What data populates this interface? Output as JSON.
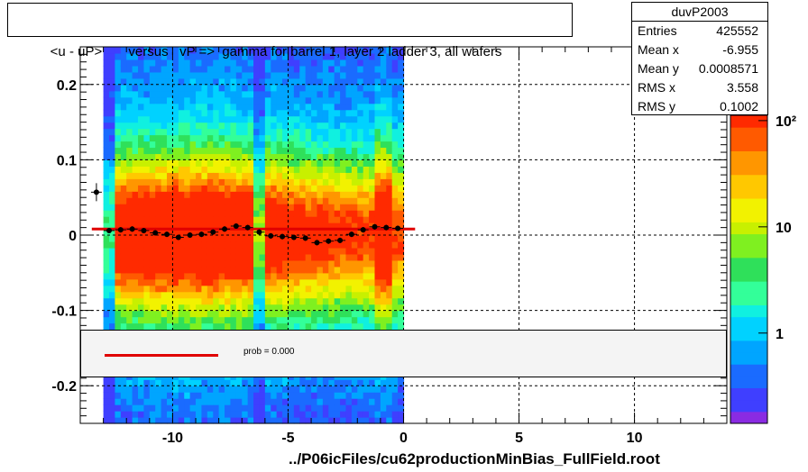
{
  "title": "<u - uP>       versus   vP =>  gamma for barrel 1, layer 2 ladder 3, all wafers",
  "stats": {
    "name": "duvP2003",
    "rows": [
      {
        "label": "Entries",
        "value": "425552"
      },
      {
        "label": "Mean x",
        "value": "-6.955"
      },
      {
        "label": "Mean y",
        "value": "0.0008571"
      },
      {
        "label": "RMS x",
        "value": "3.558"
      },
      {
        "label": "RMS y",
        "value": "0.1002"
      }
    ]
  },
  "legend": {
    "fit_label": "prob = 0.000",
    "fit_color": "#e00000"
  },
  "footer": "../P06icFiles/cu62productionMinBias_FullField.root",
  "chart_data": {
    "type": "heatmap",
    "title": "<u - uP>       versus   vP =>  gamma for barrel 1, layer 2 ladder 3, all wafers",
    "xlim": [
      -14,
      14
    ],
    "ylim": [
      -0.25,
      0.25
    ],
    "x_ticks": [
      "-10",
      "-5",
      "0",
      "5",
      "10"
    ],
    "x_tick_values": [
      -10,
      -5,
      0,
      5,
      10
    ],
    "y_ticks": [
      "0.2",
      "0.1",
      "0",
      "-0.1",
      "-0.2"
    ],
    "y_tick_values": [
      0.2,
      0.1,
      0,
      -0.1,
      -0.2
    ],
    "grid": true,
    "z_scale": "log",
    "z_ticks": [
      "1",
      "10",
      "10²"
    ],
    "z_tick_values": [
      1,
      10,
      100
    ],
    "filled_x_range": [
      -13,
      0
    ],
    "profile": {
      "x": [
        -12.75,
        -12.25,
        -11.75,
        -11.25,
        -10.75,
        -10.25,
        -9.75,
        -9.25,
        -8.75,
        -8.25,
        -7.75,
        -7.25,
        -6.75,
        -6.25,
        -5.75,
        -5.25,
        -4.75,
        -4.25,
        -3.75,
        -3.25,
        -2.75,
        -2.25,
        -1.75,
        -1.25,
        -0.75,
        -0.25
      ],
      "y": [
        0.006,
        0.007,
        0.008,
        0.006,
        0.003,
        0.001,
        -0.003,
        0.0,
        0.001,
        0.004,
        0.008,
        0.012,
        0.01,
        0.004,
        -0.001,
        -0.002,
        -0.003,
        -0.004,
        -0.01,
        -0.008,
        -0.007,
        0.001,
        0.007,
        0.011,
        0.01,
        0.009
      ]
    },
    "outlier_point": {
      "x": -13.3,
      "y": 0.057
    },
    "fit_line": {
      "x": [
        -13.5,
        0.5
      ],
      "y": [
        0.008,
        0.008
      ],
      "color": "#e00000"
    }
  }
}
